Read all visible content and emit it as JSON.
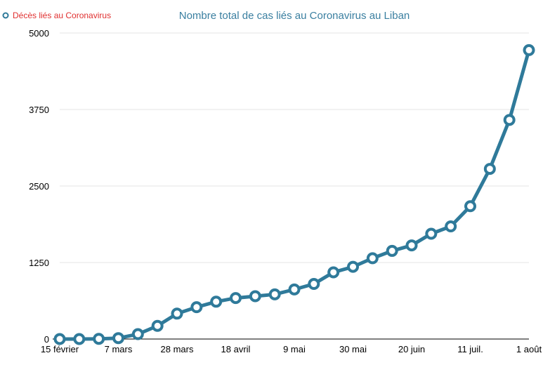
{
  "chart_data": {
    "type": "line",
    "title": "Nombre total de cas liés au Coronavirus au Liban",
    "legend": {
      "label": "Décès liés au Coronavirus",
      "placement": "top-left"
    },
    "xlabel": "",
    "ylabel": "",
    "ylim": [
      0,
      5000
    ],
    "yticks": [
      0,
      1250,
      2500,
      3750,
      5000
    ],
    "ytick_labels": [
      "0",
      "1250",
      "2500",
      "3750",
      "5000"
    ],
    "xtick_labels": [
      "15 février",
      "7 mars",
      "28 mars",
      "18 avril",
      "9 mai",
      "30 mai",
      "20 juin",
      "11 juil.",
      "1 août"
    ],
    "xtick_indices": [
      0,
      3,
      6,
      9,
      12,
      15,
      18,
      21,
      24
    ],
    "grid": true,
    "series": [
      {
        "name": "Décès liés au Coronavirus",
        "color": "#2f7a9a",
        "values": [
          0,
          0,
          3,
          15,
          80,
          215,
          415,
          520,
          610,
          670,
          700,
          730,
          810,
          900,
          1090,
          1180,
          1320,
          1440,
          1530,
          1720,
          1840,
          2170,
          2780,
          3580,
          4720
        ]
      }
    ]
  }
}
